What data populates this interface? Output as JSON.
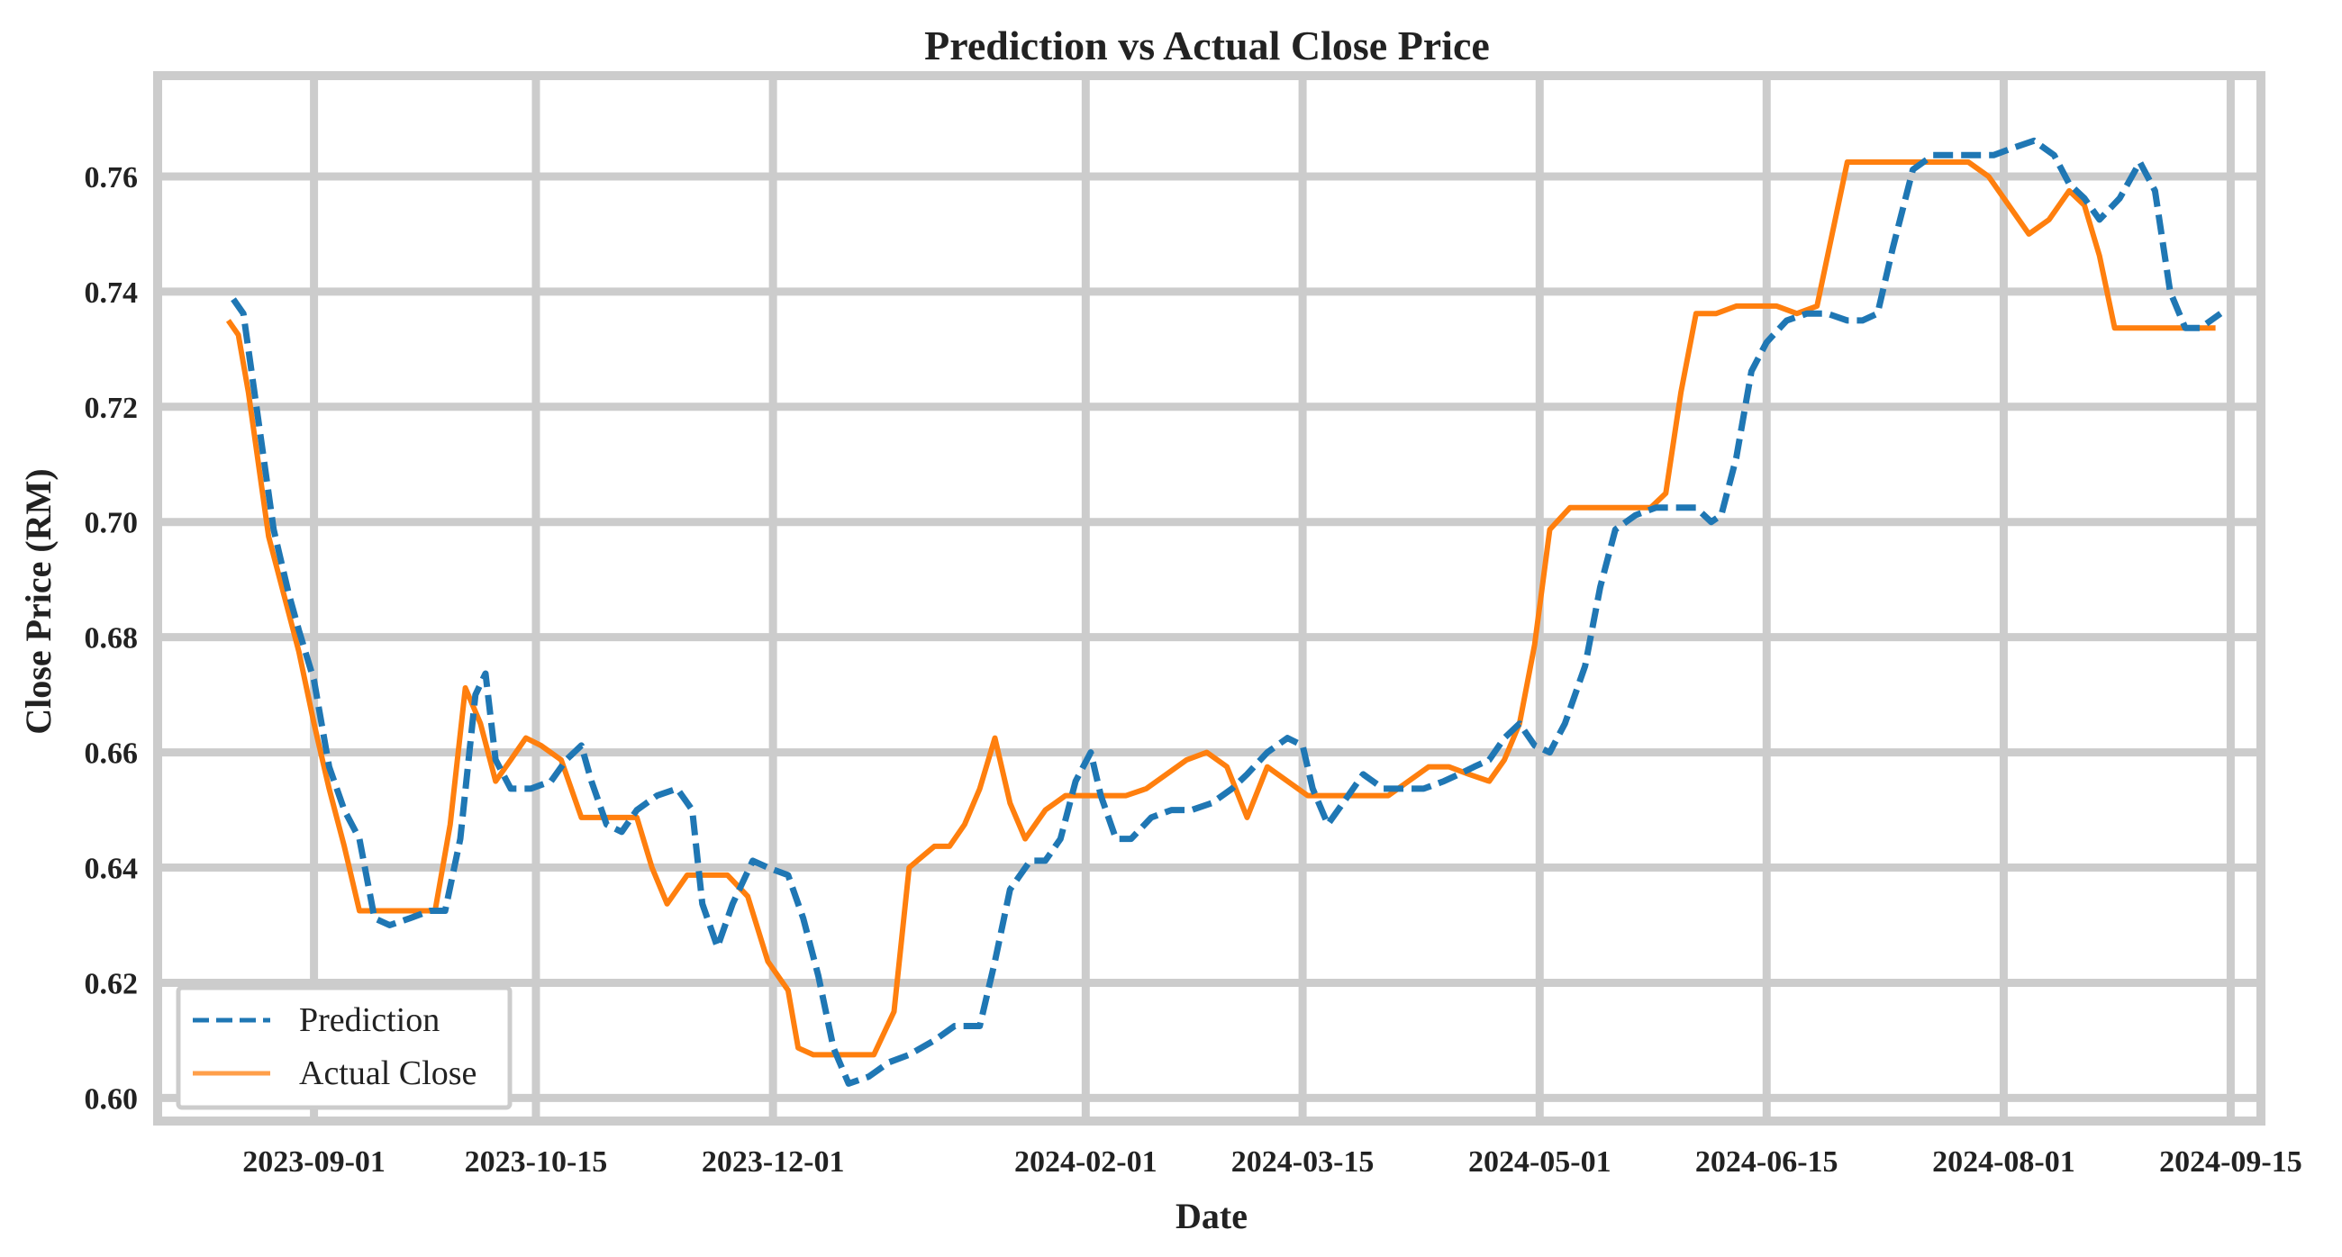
{
  "chart_data": {
    "type": "line",
    "title": "Prediction vs Actual Close Price",
    "xlabel": "Date",
    "ylabel": "Close Price (RM)",
    "x_tick_labels": [
      "2023-09-01",
      "2023-10-15",
      "2023-12-01",
      "2024-02-01",
      "2024-03-15",
      "2024-05-01",
      "2024-06-15",
      "2024-08-01",
      "2024-09-15"
    ],
    "x_range": [
      "2023-08-01",
      "2024-09-21"
    ],
    "y_tick_labels": [
      "0.60",
      "0.62",
      "0.64",
      "0.66",
      "0.68",
      "0.70",
      "0.72",
      "0.74",
      "0.76"
    ],
    "y_range": [
      0.596,
      0.7775
    ],
    "grid": true,
    "legend_position": "bottom-left",
    "colors": {
      "prediction": "#1f77b4",
      "actual": "#ff7f0e",
      "grid": "#cccccc"
    },
    "series": [
      {
        "name": "Prediction",
        "style": "dashed",
        "color": "#1f77b4",
        "points": [
          [
            "2023-08-16",
            0.7387
          ],
          [
            "2023-08-18",
            0.7362
          ],
          [
            "2023-08-20",
            0.7237
          ],
          [
            "2023-08-22",
            0.7112
          ],
          [
            "2023-08-24",
            0.6987
          ],
          [
            "2023-08-27",
            0.6875
          ],
          [
            "2023-08-29",
            0.6812
          ],
          [
            "2023-09-01",
            0.6725
          ],
          [
            "2023-09-04",
            0.6575
          ],
          [
            "2023-09-07",
            0.65
          ],
          [
            "2023-09-10",
            0.645
          ],
          [
            "2023-09-13",
            0.6312
          ],
          [
            "2023-09-16",
            0.63
          ],
          [
            "2023-09-20",
            0.6312
          ],
          [
            "2023-09-24",
            0.6325
          ],
          [
            "2023-09-27",
            0.6325
          ],
          [
            "2023-09-30",
            0.645
          ],
          [
            "2023-10-03",
            0.67
          ],
          [
            "2023-10-05",
            0.6737
          ],
          [
            "2023-10-07",
            0.6587
          ],
          [
            "2023-10-10",
            0.6537
          ],
          [
            "2023-10-14",
            0.6537
          ],
          [
            "2023-10-18",
            0.655
          ],
          [
            "2023-10-21",
            0.6587
          ],
          [
            "2023-10-24",
            0.6612
          ],
          [
            "2023-10-26",
            0.655
          ],
          [
            "2023-10-29",
            0.6475
          ],
          [
            "2023-11-01",
            0.6462
          ],
          [
            "2023-11-04",
            0.65
          ],
          [
            "2023-11-08",
            0.6525
          ],
          [
            "2023-11-12",
            0.6537
          ],
          [
            "2023-11-15",
            0.65
          ],
          [
            "2023-11-17",
            0.6337
          ],
          [
            "2023-11-20",
            0.6262
          ],
          [
            "2023-11-23",
            0.6337
          ],
          [
            "2023-11-27",
            0.6412
          ],
          [
            "2023-11-30",
            0.64
          ],
          [
            "2023-12-04",
            0.6387
          ],
          [
            "2023-12-07",
            0.6312
          ],
          [
            "2023-12-10",
            0.6212
          ],
          [
            "2023-12-13",
            0.6087
          ],
          [
            "2023-12-16",
            0.6025
          ],
          [
            "2023-12-20",
            0.6037
          ],
          [
            "2023-12-24",
            0.6062
          ],
          [
            "2023-12-28",
            0.6075
          ],
          [
            "2024-01-02",
            0.61
          ],
          [
            "2024-01-06",
            0.6125
          ],
          [
            "2024-01-11",
            0.6125
          ],
          [
            "2024-01-14",
            0.6237
          ],
          [
            "2024-01-17",
            0.6362
          ],
          [
            "2024-01-21",
            0.6412
          ],
          [
            "2024-01-24",
            0.6412
          ],
          [
            "2024-01-27",
            0.645
          ],
          [
            "2024-01-30",
            0.655
          ],
          [
            "2024-02-02",
            0.66
          ],
          [
            "2024-02-04",
            0.6525
          ],
          [
            "2024-02-07",
            0.645
          ],
          [
            "2024-02-10",
            0.645
          ],
          [
            "2024-02-14",
            0.6487
          ],
          [
            "2024-02-18",
            0.65
          ],
          [
            "2024-02-22",
            0.65
          ],
          [
            "2024-02-26",
            0.6512
          ],
          [
            "2024-03-01",
            0.6537
          ],
          [
            "2024-03-04",
            0.6562
          ],
          [
            "2024-03-08",
            0.66
          ],
          [
            "2024-03-12",
            0.6625
          ],
          [
            "2024-03-15",
            0.6612
          ],
          [
            "2024-03-17",
            0.6537
          ],
          [
            "2024-03-20",
            0.6475
          ],
          [
            "2024-03-23",
            0.6512
          ],
          [
            "2024-03-27",
            0.6562
          ],
          [
            "2024-03-31",
            0.6537
          ],
          [
            "2024-04-04",
            0.6537
          ],
          [
            "2024-04-08",
            0.6537
          ],
          [
            "2024-04-12",
            0.655
          ],
          [
            "2024-04-15",
            0.6562
          ],
          [
            "2024-04-18",
            0.6575
          ],
          [
            "2024-04-21",
            0.6587
          ],
          [
            "2024-04-24",
            0.6625
          ],
          [
            "2024-04-27",
            0.665
          ],
          [
            "2024-04-30",
            0.6612
          ],
          [
            "2024-05-03",
            0.66
          ],
          [
            "2024-05-06",
            0.665
          ],
          [
            "2024-05-10",
            0.675
          ],
          [
            "2024-05-13",
            0.6887
          ],
          [
            "2024-05-16",
            0.6987
          ],
          [
            "2024-05-20",
            0.7012
          ],
          [
            "2024-05-24",
            0.7025
          ],
          [
            "2024-05-28",
            0.7025
          ],
          [
            "2024-06-01",
            0.7025
          ],
          [
            "2024-06-04",
            0.7
          ],
          [
            "2024-06-06",
            0.7012
          ],
          [
            "2024-06-09",
            0.7112
          ],
          [
            "2024-06-12",
            0.7262
          ],
          [
            "2024-06-15",
            0.7312
          ],
          [
            "2024-06-19",
            0.735
          ],
          [
            "2024-06-23",
            0.7362
          ],
          [
            "2024-06-27",
            0.7362
          ],
          [
            "2024-07-01",
            0.735
          ],
          [
            "2024-07-04",
            0.735
          ],
          [
            "2024-07-07",
            0.7362
          ],
          [
            "2024-07-10",
            0.7475
          ],
          [
            "2024-07-14",
            0.7612
          ],
          [
            "2024-07-18",
            0.7637
          ],
          [
            "2024-07-22",
            0.7637
          ],
          [
            "2024-07-26",
            0.7637
          ],
          [
            "2024-07-30",
            0.7637
          ],
          [
            "2024-08-03",
            0.765
          ],
          [
            "2024-08-07",
            0.7662
          ],
          [
            "2024-08-11",
            0.7637
          ],
          [
            "2024-08-14",
            0.7587
          ],
          [
            "2024-08-17",
            0.7562
          ],
          [
            "2024-08-20",
            0.7525
          ],
          [
            "2024-08-24",
            0.7562
          ],
          [
            "2024-08-28",
            0.7625
          ],
          [
            "2024-08-31",
            0.7575
          ],
          [
            "2024-09-03",
            0.74
          ],
          [
            "2024-09-06",
            0.7337
          ],
          [
            "2024-09-09",
            0.7337
          ],
          [
            "2024-09-13",
            0.7362
          ]
        ]
      },
      {
        "name": "Actual Close",
        "style": "solid",
        "color": "#ff7f0e",
        "points": [
          [
            "2023-08-15",
            0.735
          ],
          [
            "2023-08-17",
            0.7325
          ],
          [
            "2023-08-19",
            0.7225
          ],
          [
            "2023-08-21",
            0.71
          ],
          [
            "2023-08-23",
            0.6975
          ],
          [
            "2023-08-26",
            0.6875
          ],
          [
            "2023-08-29",
            0.6775
          ],
          [
            "2023-09-01",
            0.665
          ],
          [
            "2023-09-04",
            0.6537
          ],
          [
            "2023-09-07",
            0.6437
          ],
          [
            "2023-09-10",
            0.6325
          ],
          [
            "2023-09-14",
            0.6325
          ],
          [
            "2023-09-18",
            0.6325
          ],
          [
            "2023-09-22",
            0.6325
          ],
          [
            "2023-09-25",
            0.6325
          ],
          [
            "2023-09-28",
            0.6475
          ],
          [
            "2023-10-01",
            0.6712
          ],
          [
            "2023-10-04",
            0.665
          ],
          [
            "2023-10-07",
            0.655
          ],
          [
            "2023-10-10",
            0.6587
          ],
          [
            "2023-10-13",
            0.6625
          ],
          [
            "2023-10-16",
            0.6612
          ],
          [
            "2023-10-20",
            0.6587
          ],
          [
            "2023-10-24",
            0.6487
          ],
          [
            "2023-10-27",
            0.6487
          ],
          [
            "2023-10-31",
            0.6487
          ],
          [
            "2023-11-04",
            0.6487
          ],
          [
            "2023-11-07",
            0.64
          ],
          [
            "2023-11-10",
            0.6337
          ],
          [
            "2023-11-14",
            0.6387
          ],
          [
            "2023-11-18",
            0.6387
          ],
          [
            "2023-11-22",
            0.6387
          ],
          [
            "2023-11-26",
            0.635
          ],
          [
            "2023-11-30",
            0.6237
          ],
          [
            "2023-12-04",
            0.6187
          ],
          [
            "2023-12-06",
            0.6087
          ],
          [
            "2023-12-09",
            0.6075
          ],
          [
            "2023-12-13",
            0.6075
          ],
          [
            "2023-12-17",
            0.6075
          ],
          [
            "2023-12-21",
            0.6075
          ],
          [
            "2023-12-25",
            0.615
          ],
          [
            "2023-12-28",
            0.64
          ],
          [
            "2024-01-02",
            0.6437
          ],
          [
            "2024-01-05",
            0.6437
          ],
          [
            "2024-01-08",
            0.6475
          ],
          [
            "2024-01-11",
            0.6537
          ],
          [
            "2024-01-14",
            0.6625
          ],
          [
            "2024-01-17",
            0.6512
          ],
          [
            "2024-01-20",
            0.645
          ],
          [
            "2024-01-24",
            0.65
          ],
          [
            "2024-01-28",
            0.6525
          ],
          [
            "2024-02-01",
            0.6525
          ],
          [
            "2024-02-05",
            0.6525
          ],
          [
            "2024-02-09",
            0.6525
          ],
          [
            "2024-02-13",
            0.6537
          ],
          [
            "2024-02-17",
            0.6562
          ],
          [
            "2024-02-21",
            0.6587
          ],
          [
            "2024-02-25",
            0.66
          ],
          [
            "2024-02-29",
            0.6575
          ],
          [
            "2024-03-04",
            0.6487
          ],
          [
            "2024-03-08",
            0.6575
          ],
          [
            "2024-03-12",
            0.655
          ],
          [
            "2024-03-16",
            0.6525
          ],
          [
            "2024-03-20",
            0.6525
          ],
          [
            "2024-03-24",
            0.6525
          ],
          [
            "2024-03-28",
            0.6525
          ],
          [
            "2024-04-01",
            0.6525
          ],
          [
            "2024-04-05",
            0.655
          ],
          [
            "2024-04-09",
            0.6575
          ],
          [
            "2024-04-13",
            0.6575
          ],
          [
            "2024-04-17",
            0.6562
          ],
          [
            "2024-04-21",
            0.655
          ],
          [
            "2024-04-24",
            0.6587
          ],
          [
            "2024-04-27",
            0.665
          ],
          [
            "2024-04-30",
            0.6787
          ],
          [
            "2024-05-03",
            0.6987
          ],
          [
            "2024-05-07",
            0.7025
          ],
          [
            "2024-05-11",
            0.7025
          ],
          [
            "2024-05-15",
            0.7025
          ],
          [
            "2024-05-19",
            0.7025
          ],
          [
            "2024-05-23",
            0.7025
          ],
          [
            "2024-05-26",
            0.705
          ],
          [
            "2024-05-29",
            0.7225
          ],
          [
            "2024-06-01",
            0.7362
          ],
          [
            "2024-06-05",
            0.7362
          ],
          [
            "2024-06-09",
            0.7375
          ],
          [
            "2024-06-13",
            0.7375
          ],
          [
            "2024-06-17",
            0.7375
          ],
          [
            "2024-06-21",
            0.7362
          ],
          [
            "2024-06-25",
            0.7375
          ],
          [
            "2024-06-28",
            0.75
          ],
          [
            "2024-07-01",
            0.7625
          ],
          [
            "2024-07-05",
            0.7625
          ],
          [
            "2024-07-09",
            0.7625
          ],
          [
            "2024-07-13",
            0.7625
          ],
          [
            "2024-07-17",
            0.7625
          ],
          [
            "2024-07-21",
            0.7625
          ],
          [
            "2024-07-25",
            0.7625
          ],
          [
            "2024-07-29",
            0.76
          ],
          [
            "2024-08-02",
            0.755
          ],
          [
            "2024-08-06",
            0.75
          ],
          [
            "2024-08-10",
            0.7525
          ],
          [
            "2024-08-14",
            0.7575
          ],
          [
            "2024-08-17",
            0.755
          ],
          [
            "2024-08-20",
            0.7462
          ],
          [
            "2024-08-23",
            0.7337
          ],
          [
            "2024-08-27",
            0.7337
          ],
          [
            "2024-08-31",
            0.7337
          ],
          [
            "2024-09-04",
            0.7337
          ],
          [
            "2024-09-08",
            0.7337
          ],
          [
            "2024-09-12",
            0.7337
          ]
        ]
      }
    ]
  }
}
